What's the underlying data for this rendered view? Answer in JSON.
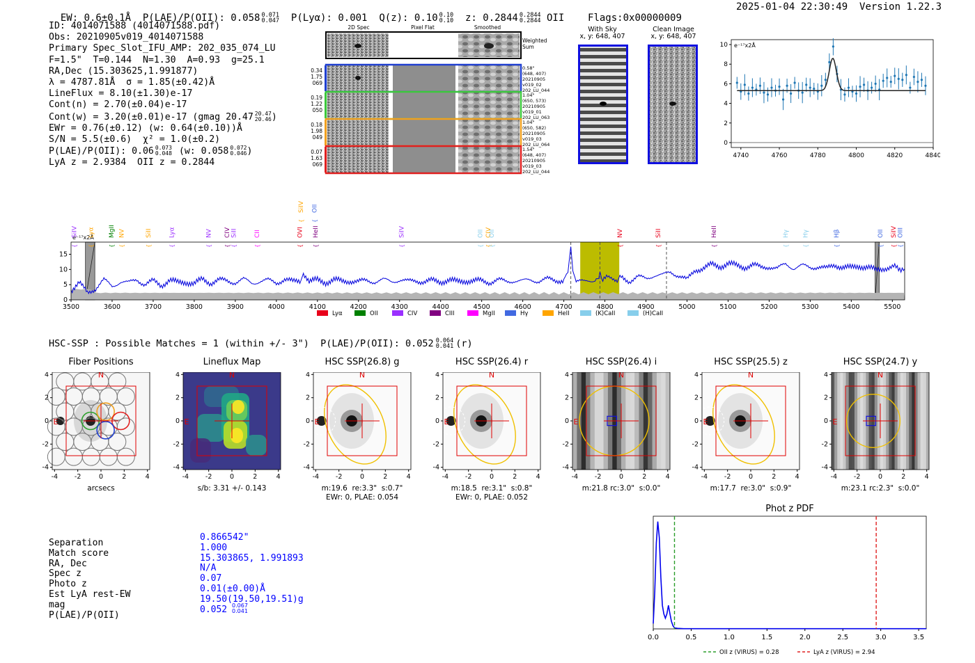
{
  "header": {
    "ew": "EW: 0.6±0.1Å",
    "plae_label": "P(LAE)/P(OII): 0.058",
    "plae_hi": "0.071",
    "plae_lo": "0.047",
    "plya": "P(Lyα): 0.001",
    "qz_label": "Q(z): 0.10",
    "qz_hi": "0.10",
    "qz_lo": "0.10",
    "z_label": "z: 0.2844",
    "z_hi": "0.2844",
    "z_lo": "0.2844",
    "z_line": "OII",
    "flags": "Flags:0x00000009",
    "timestamp": "2025-01-04 22:30:49",
    "version": "Version 1.22.3"
  },
  "info": {
    "id": "ID: 4014071588 (4014071588.pdf)",
    "obs": "Obs: 20210905v019_4014071588",
    "primary": "Primary Spec_Slot_IFU_AMP: 202_035_074_LU",
    "fit": "F=1.5\"  T=0.144  N=1.30  A=0.93  g=25.1",
    "radec": "RA,Dec (15.303625,1.991877)",
    "lambda": "λ = 4787.81Å  σ = 1.85(±0.42)Å",
    "lineflux": "LineFlux = 8.10(±1.30)e-17",
    "contn": "Cont(n) = 2.70(±0.04)e-17",
    "contw": "Cont(w) = 3.20(±0.01)e-17 (gmag 20.47",
    "gmag_hi": "20.47",
    "gmag_lo": "20.46",
    "ewr": "EWr = 0.76(±0.12) (w: 0.64(±0.10))Å",
    "sn": "S/N = 5.5(±0.6)  χ² = 1.0(±0.2)",
    "plae": "P(LAE)/P(OII): 0.06",
    "plae_hi": "0.073",
    "plae_lo": "0.048",
    "plae_w": "(w: 0.058",
    "plae_w_hi": "0.072",
    "plae_w_lo": "0.046",
    "lyaz": "LyA z = 2.9384  OII z = 0.2844"
  },
  "cutouts": {
    "col_2d": "2D Spec",
    "col_flat": "Pixel Flat",
    "col_smooth": "Smoothed",
    "weighted": "Weighted\nSum",
    "rows": [
      {
        "stats": [
          "0.34",
          "1.75",
          "069"
        ],
        "meta": [
          "0.58\"",
          "(648, 407)",
          "20210905",
          "v019_02",
          "202_LU_044"
        ],
        "color": "#1f3fd0"
      },
      {
        "stats": [
          "0.19",
          "1.22",
          "050"
        ],
        "meta": [
          "1.04\"",
          "(650, 573)",
          "20210905",
          "v019_01",
          "202_LU_063"
        ],
        "color": "#3cc83c"
      },
      {
        "stats": [
          "0.18",
          "1.98",
          "049"
        ],
        "meta": [
          "1.04\"",
          "(650, 582)",
          "20210905",
          "v019_03",
          "202_LU_064"
        ],
        "color": "#f0a020"
      },
      {
        "stats": [
          "0.07",
          "1.63",
          "069"
        ],
        "meta": [
          "1.54\"",
          "(648, 407)",
          "20210905",
          "v019_03",
          "202_LU_044"
        ],
        "color": "#e02020"
      }
    ],
    "with_sky": "With Sky",
    "with_sky_xy": "x, y: 648, 407",
    "clean": "Clean Image",
    "clean_xy": "x, y: 648, 407"
  },
  "zoom_chart": {
    "chart_data": {
      "type": "line",
      "title": "",
      "ylabel": "e⁻¹⁷x2Å",
      "xlim": [
        4735,
        4840
      ],
      "ylim": [
        -0.5,
        10.5
      ],
      "xticks": [
        4740,
        4760,
        4780,
        4800,
        4820,
        4840
      ],
      "yticks": [
        0,
        2,
        4,
        6,
        8,
        10
      ],
      "model_baseline": 5.3,
      "model_peak": 8.6,
      "model_center": 4787.8,
      "model_sigma": 1.85,
      "x": [
        4738,
        4740,
        4742,
        4744,
        4746,
        4748,
        4750,
        4752,
        4754,
        4756,
        4758,
        4760,
        4762,
        4764,
        4766,
        4768,
        4770,
        4772,
        4774,
        4776,
        4778,
        4780,
        4782,
        4784,
        4786,
        4788,
        4790,
        4792,
        4794,
        4796,
        4798,
        4800,
        4802,
        4804,
        4806,
        4808,
        4810,
        4812,
        4814,
        4816,
        4818,
        4820,
        4822,
        4824,
        4826,
        4828,
        4830,
        4832,
        4834,
        4836
      ],
      "y": [
        6.1,
        5.2,
        5.9,
        5.0,
        5.6,
        5.4,
        5.8,
        5.1,
        4.9,
        5.6,
        5.3,
        5.7,
        4.4,
        5.8,
        5.0,
        6.1,
        5.3,
        5.1,
        5.9,
        5.6,
        5.5,
        5.2,
        5.8,
        6.4,
        8.2,
        9.8,
        7.0,
        5.4,
        4.9,
        5.6,
        5.2,
        5.0,
        5.7,
        5.9,
        5.3,
        5.6,
        6.0,
        5.4,
        6.3,
        6.6,
        6.2,
        6.8,
        6.5,
        6.4,
        6.9,
        5.6,
        6.7,
        6.2,
        6.4,
        5.8
      ]
    }
  },
  "spectrum": {
    "ylabel": "e⁻¹⁷x2Å",
    "chart_data": {
      "type": "line",
      "xlim": [
        3500,
        5530
      ],
      "ylim": [
        0,
        19
      ],
      "xticks": [
        3500,
        3600,
        3700,
        3800,
        3900,
        4000,
        4100,
        4200,
        4300,
        4400,
        4500,
        4600,
        4700,
        4800,
        4900,
        5000,
        5100,
        5200,
        5300,
        5400,
        5500
      ],
      "yticks": [
        0,
        5,
        10,
        15
      ],
      "highlight_range": [
        4740,
        4835
      ],
      "dashed_lines": [
        4717,
        4788,
        4950
      ],
      "masked_ranges": [
        [
          3535,
          3558
        ],
        [
          5458,
          5468
        ]
      ],
      "series_points": [
        [
          3500,
          3.2
        ],
        [
          3520,
          5.5
        ],
        [
          3540,
          2.4
        ],
        [
          3560,
          3.8
        ],
        [
          3580,
          6.5
        ],
        [
          3600,
          4.5
        ],
        [
          3620,
          6.0
        ],
        [
          3640,
          5.5
        ],
        [
          3660,
          6.8
        ],
        [
          3680,
          5.0
        ],
        [
          3700,
          6.2
        ],
        [
          3720,
          4.8
        ],
        [
          3740,
          6.5
        ],
        [
          3760,
          5.6
        ],
        [
          3780,
          6.0
        ],
        [
          3800,
          5.2
        ],
        [
          3820,
          6.8
        ],
        [
          3840,
          5.6
        ],
        [
          3860,
          6.5
        ],
        [
          3880,
          6.2
        ],
        [
          3900,
          5.8
        ],
        [
          3920,
          6.7
        ],
        [
          3940,
          5.5
        ],
        [
          3960,
          6.2
        ],
        [
          3980,
          6.4
        ],
        [
          4000,
          5.6
        ],
        [
          4020,
          6.8
        ],
        [
          4040,
          5.9
        ],
        [
          4060,
          6.4
        ],
        [
          4066,
          8.8
        ],
        [
          4080,
          6.0
        ],
        [
          4100,
          6.5
        ],
        [
          4120,
          5.8
        ],
        [
          4140,
          6.6
        ],
        [
          4160,
          6.0
        ],
        [
          4180,
          6.3
        ],
        [
          4200,
          5.9
        ],
        [
          4220,
          6.4
        ],
        [
          4240,
          6.0
        ],
        [
          4260,
          6.5
        ],
        [
          4280,
          6.1
        ],
        [
          4300,
          6.6
        ],
        [
          4320,
          6.0
        ],
        [
          4340,
          6.4
        ],
        [
          4360,
          5.9
        ],
        [
          4380,
          6.3
        ],
        [
          4400,
          6.0
        ],
        [
          4420,
          6.5
        ],
        [
          4440,
          5.9
        ],
        [
          4460,
          6.4
        ],
        [
          4480,
          6.1
        ],
        [
          4500,
          6.3
        ],
        [
          4520,
          5.8
        ],
        [
          4540,
          6.5
        ],
        [
          4560,
          6.0
        ],
        [
          4580,
          6.4
        ],
        [
          4600,
          6.1
        ],
        [
          4620,
          6.6
        ],
        [
          4640,
          6.2
        ],
        [
          4660,
          6.8
        ],
        [
          4680,
          6.4
        ],
        [
          4700,
          6.5
        ],
        [
          4710,
          9.0
        ],
        [
          4717,
          17.5
        ],
        [
          4722,
          9.5
        ],
        [
          4730,
          6.2
        ],
        [
          4750,
          5.8
        ],
        [
          4770,
          6.5
        ],
        [
          4785,
          7.0
        ],
        [
          4788,
          9.2
        ],
        [
          4792,
          7.1
        ],
        [
          4810,
          7.2
        ],
        [
          4830,
          6.8
        ],
        [
          4840,
          7.5
        ],
        [
          4860,
          6.2
        ],
        [
          4880,
          7.5
        ],
        [
          4900,
          7.0
        ],
        [
          4920,
          8.2
        ],
        [
          4940,
          8.0
        ],
        [
          4960,
          9.2
        ],
        [
          4980,
          8.0
        ],
        [
          5000,
          6.5
        ],
        [
          5020,
          9.8
        ],
        [
          5040,
          10.5
        ],
        [
          5060,
          11.5
        ],
        [
          5080,
          11.0
        ],
        [
          5100,
          12.0
        ],
        [
          5120,
          11.2
        ],
        [
          5140,
          10.8
        ],
        [
          5160,
          11.5
        ],
        [
          5180,
          10.6
        ],
        [
          5200,
          11.0
        ],
        [
          5220,
          10.2
        ],
        [
          5240,
          11.8
        ],
        [
          5260,
          10.5
        ],
        [
          5280,
          11.2
        ],
        [
          5300,
          10.6
        ],
        [
          5320,
          11.0
        ],
        [
          5340,
          10.2
        ],
        [
          5360,
          11.5
        ],
        [
          5380,
          10.8
        ],
        [
          5400,
          10.4
        ],
        [
          5420,
          11.2
        ],
        [
          5440,
          10.8
        ],
        [
          5460,
          9.6
        ],
        [
          5480,
          10.5
        ],
        [
          5500,
          10.8
        ],
        [
          5530,
          10.2
        ]
      ],
      "error_level": 2.2
    },
    "legend": [
      {
        "label": "Lyα",
        "color": "#e8001a"
      },
      {
        "label": "OII",
        "color": "#008000"
      },
      {
        "label": "CIV",
        "color": "#9b30ff"
      },
      {
        "label": "CIII",
        "color": "#800080"
      },
      {
        "label": "MgII",
        "color": "#ff00ff"
      },
      {
        "label": "Hγ",
        "color": "#4169e1"
      },
      {
        "label": "HeII",
        "color": "#ffa500"
      },
      {
        "label": "(K)CaII",
        "color": "#87ceeb"
      },
      {
        "label": "(H)CaII",
        "color": "#87ceeb"
      }
    ],
    "line_labels": [
      {
        "text": "SiIV",
        "x": 3508,
        "color": "#9b30ff",
        "tier": 0
      },
      {
        "text": "Lyα",
        "x": 3548,
        "color": "#ffa500",
        "tier": 0
      },
      {
        "text": "MgII",
        "x": 3598,
        "color": "#008000",
        "tier": 0
      },
      {
        "text": "NV",
        "x": 3623,
        "color": "#ffa500",
        "tier": 0
      },
      {
        "text": "SiII",
        "x": 3688,
        "color": "#ffa500",
        "tier": 0
      },
      {
        "text": "Lyα",
        "x": 3745,
        "color": "#9b30ff",
        "tier": 0
      },
      {
        "text": "NV",
        "x": 3835,
        "color": "#9b30ff",
        "tier": 0
      },
      {
        "text": "CIV",
        "x": 3880,
        "color": "#800080",
        "tier": 0
      },
      {
        "text": "SiII",
        "x": 3896,
        "color": "#9b30ff",
        "tier": 0
      },
      {
        "text": "CII",
        "x": 3953,
        "color": "#ff00ff",
        "tier": 0
      },
      {
        "text": "OVI",
        "x": 4057,
        "color": "#e8001a",
        "tier": 0
      },
      {
        "text": "SiIV",
        "x": 4060,
        "color": "#ffa500",
        "tier": 1
      },
      {
        "text": "OII",
        "x": 4093,
        "color": "#4169e1",
        "tier": 1
      },
      {
        "text": "HeII",
        "x": 4095,
        "color": "#800080",
        "tier": 0
      },
      {
        "text": "SiIV",
        "x": 4305,
        "color": "#9b30ff",
        "tier": 0
      },
      {
        "text": "OII",
        "x": 4496,
        "color": "#87ceeb",
        "tier": 0
      },
      {
        "text": "CIV",
        "x": 4516,
        "color": "#ffa500",
        "tier": 0
      },
      {
        "text": "OII",
        "x": 4524,
        "color": "#87ceeb",
        "tier": 0
      },
      {
        "text": "NV",
        "x": 4836,
        "color": "#e8001a",
        "tier": 0
      },
      {
        "text": "SiII",
        "x": 4930,
        "color": "#e8001a",
        "tier": 0
      },
      {
        "text": "HeII",
        "x": 5065,
        "color": "#800080",
        "tier": 0
      },
      {
        "text": "Hγ",
        "x": 5240,
        "color": "#87ceeb",
        "tier": 0
      },
      {
        "text": "Hγ",
        "x": 5288,
        "color": "#87ceeb",
        "tier": 0
      },
      {
        "text": "Hβ",
        "x": 5364,
        "color": "#4169e1",
        "tier": 0
      },
      {
        "text": "OII",
        "x": 5471,
        "color": "#4169e1",
        "tier": 0
      },
      {
        "text": "SiIV",
        "x": 5503,
        "color": "#e8001a",
        "tier": 0
      },
      {
        "text": "OIII",
        "x": 5519,
        "color": "#4169e1",
        "tier": 0
      }
    ]
  },
  "hsc_line": {
    "text": "HSC-SSP : Possible Matches = 1 (within +/- 3\")  P(LAE)/P(OII): 0.052",
    "hi": "0.064",
    "lo": "0.041",
    "band": "(r)"
  },
  "panels": [
    {
      "title": "Fiber Positions",
      "cap1": "arcsecs",
      "cap2": "",
      "kind": "fiber"
    },
    {
      "title": "Lineflux Map",
      "cap1": "s/b: 3.31 +/- 0.143",
      "cap2": "",
      "kind": "flux"
    },
    {
      "title": "HSC SSP(26.8) g",
      "cap1": "m:19.6  re:3.3\"  s:0.7\"",
      "cap2": "EWr: 0, PLAE: 0.054",
      "kind": "galaxy"
    },
    {
      "title": "HSC SSP(26.4) r",
      "cap1": "m:18.5  re:3.1\"  s:0.8\"",
      "cap2": "EWr: 0, PLAE: 0.052",
      "kind": "galaxy"
    },
    {
      "title": "HSC SSP(26.4) i",
      "cap1": "m:21.8 rc:3.0\"  s:0.0\"",
      "cap2": "",
      "kind": "stripes"
    },
    {
      "title": "HSC SSP(25.5) z",
      "cap1": "m:17.7  re:3.0\"  s:0.9\"",
      "cap2": "",
      "kind": "galaxy"
    },
    {
      "title": "HSC SSP(24.7) y",
      "cap1": "m:23.1 rc:2.3\"  s:0.0\"",
      "cap2": "",
      "kind": "stripes2"
    }
  ],
  "panel_axes": {
    "ticks": [
      "-4",
      "-2",
      "0",
      "2",
      "4"
    ],
    "north": "N",
    "east": "E"
  },
  "match_table": {
    "rows": [
      {
        "label": "Separation",
        "value": "0.866542\""
      },
      {
        "label": "Match score",
        "value": "1.000"
      },
      {
        "label": "RA, Dec",
        "value": "15.303865, 1.991893"
      },
      {
        "label": "Spec z",
        "value": "N/A"
      },
      {
        "label": "Photo z",
        "value": "0.07"
      },
      {
        "label": "Est LyA rest-EW",
        "value": "0.01(±0.00)Å"
      },
      {
        "label": "mag",
        "value": "19.50(19.50,19.51)g"
      },
      {
        "label": "P(LAE)/P(OII)",
        "value": "0.052"
      }
    ],
    "plae_hi": "0.067",
    "plae_lo": "0.041"
  },
  "photoz": {
    "chart_data": {
      "type": "line",
      "title": "Phot z PDF",
      "xlim": [
        0,
        3.6
      ],
      "ylim": [
        0,
        1.05
      ],
      "xticks": [
        0.0,
        0.5,
        1.0,
        1.5,
        2.0,
        2.5,
        3.0,
        3.5
      ],
      "x": [
        0.0,
        0.02,
        0.04,
        0.06,
        0.08,
        0.1,
        0.12,
        0.14,
        0.16,
        0.18,
        0.2,
        0.22,
        0.24,
        0.26,
        0.28,
        0.32,
        0.4,
        3.6
      ],
      "y": [
        0.05,
        0.35,
        0.8,
        1.0,
        0.85,
        0.48,
        0.22,
        0.14,
        0.1,
        0.14,
        0.22,
        0.14,
        0.07,
        0.03,
        0.01,
        0.005,
        0.002,
        0.002
      ],
      "oii_z": 0.28,
      "lya_z": 2.94
    },
    "legend_oii": "OII z (VIRUS) = 0.28",
    "legend_lya": "LyA z (VIRUS) = 2.94"
  }
}
